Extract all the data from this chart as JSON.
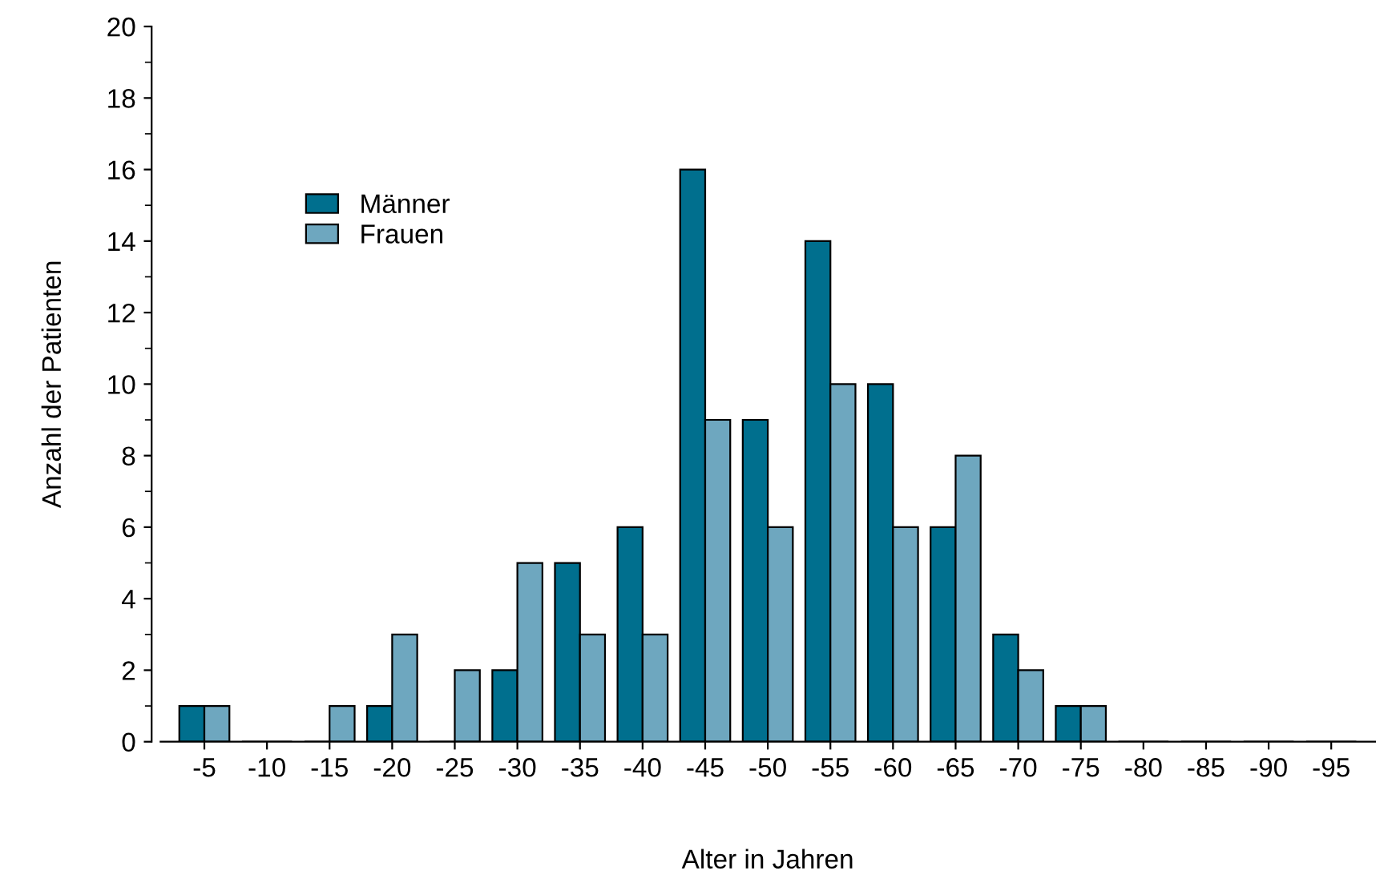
{
  "chart_data": {
    "type": "bar",
    "xlabel": "Alter in Jahren",
    "ylabel": "Anzahl der Patienten",
    "categories": [
      "-5",
      "-10",
      "-15",
      "-20",
      "-25",
      "-30",
      "-35",
      "-40",
      "-45",
      "-50",
      "-55",
      "-60",
      "-65",
      "-70",
      "-75",
      "-80",
      "-85",
      "-90",
      "-95"
    ],
    "series": [
      {
        "name": "Männer",
        "color": "#006f8e",
        "values": [
          1,
          0,
          0,
          1,
          0,
          2,
          5,
          6,
          16,
          9,
          14,
          10,
          6,
          3,
          1,
          0,
          0,
          0,
          0
        ]
      },
      {
        "name": "Frauen",
        "color": "#6ea7bf",
        "values": [
          1,
          0,
          1,
          3,
          2,
          5,
          3,
          3,
          9,
          6,
          10,
          6,
          8,
          2,
          1,
          0,
          0,
          0,
          0
        ]
      }
    ],
    "ylim": [
      0,
      20
    ],
    "yticks": [
      0,
      {
        "value": 1,
        "label": null
      },
      2,
      {
        "value": 3,
        "label": null
      },
      4,
      {
        "value": 5,
        "label": null
      },
      6,
      {
        "value": 7,
        "label": null
      },
      8,
      {
        "value": 9,
        "label": null
      },
      10,
      {
        "value": 11,
        "label": null
      },
      12,
      {
        "value": 13,
        "label": null
      },
      14,
      {
        "value": 15,
        "label": null
      },
      16,
      {
        "value": 17,
        "label": null
      },
      18,
      {
        "value": 19,
        "label": null
      },
      20
    ],
    "grid": false,
    "legend": "top left"
  }
}
